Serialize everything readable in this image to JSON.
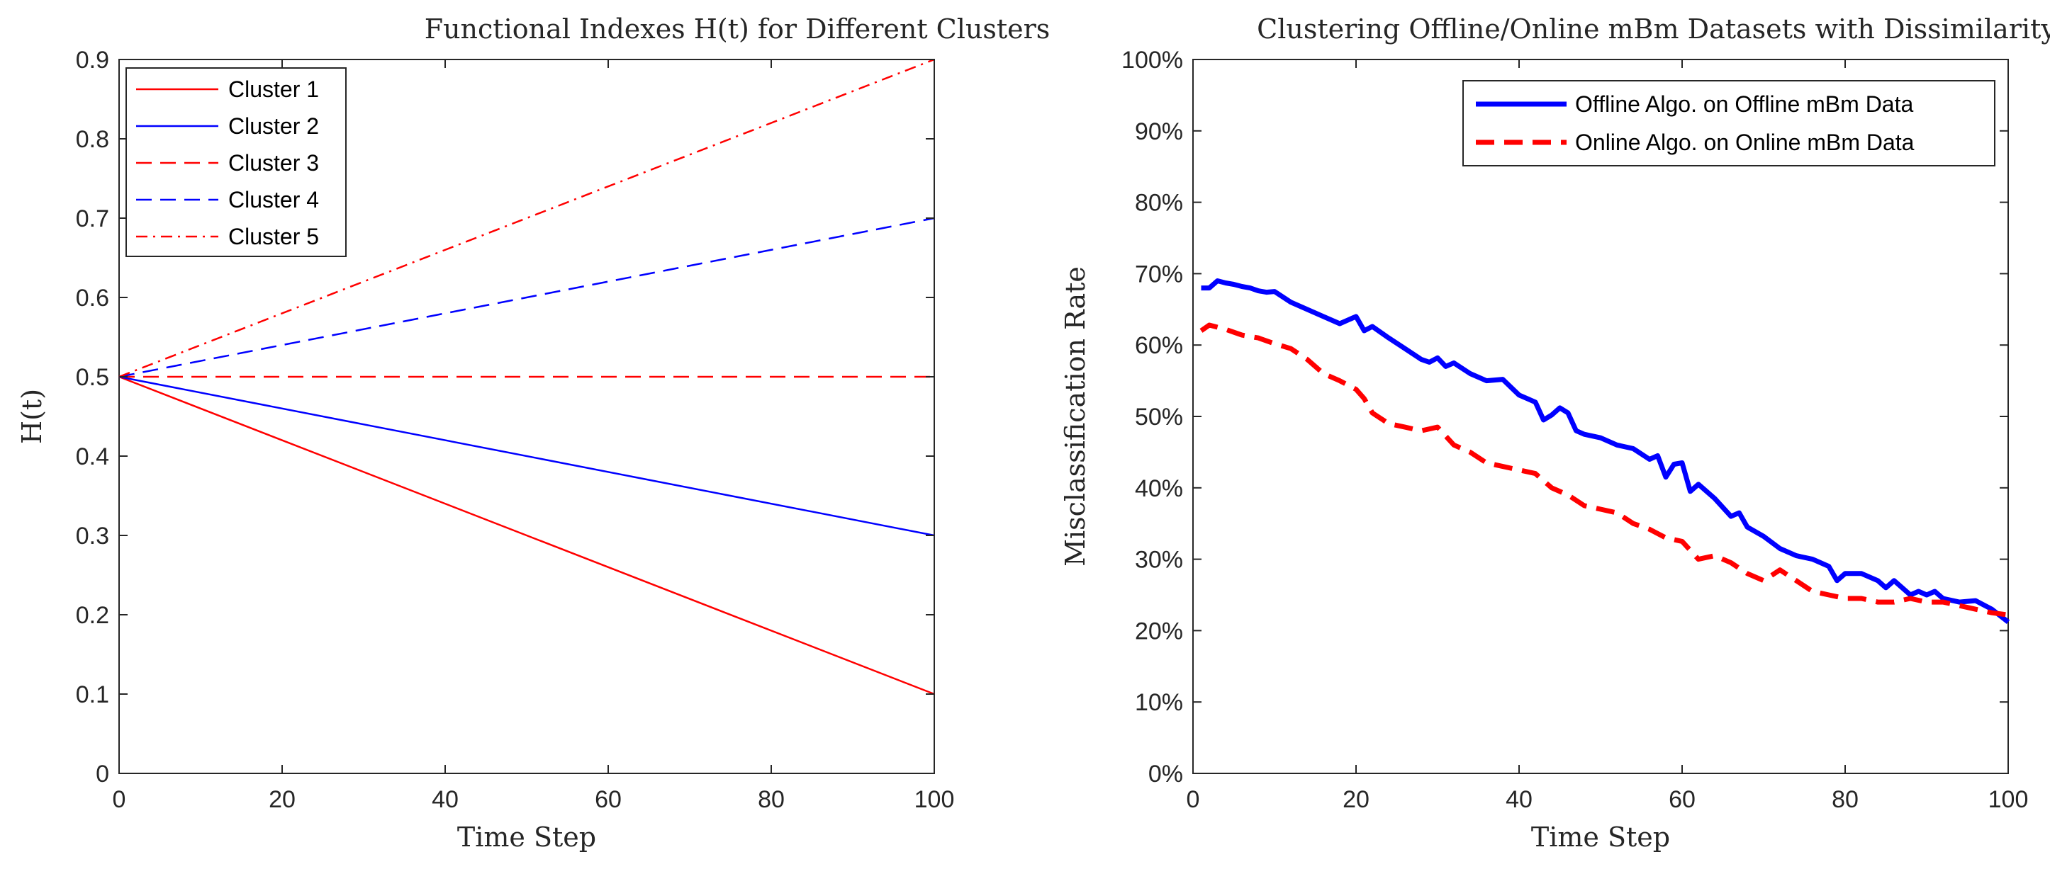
{
  "chart_data": [
    {
      "type": "line",
      "title": "Functional Indexes H(t) for Different Clusters",
      "xlabel": "Time Step",
      "ylabel": "H(t)",
      "xlim": [
        0,
        100
      ],
      "ylim": [
        0,
        0.9
      ],
      "xticks": [
        0,
        20,
        40,
        60,
        80,
        100
      ],
      "xtick_labels": [
        "0",
        "20",
        "40",
        "60",
        "80",
        "100"
      ],
      "yticks": [
        0,
        0.1,
        0.2,
        0.3,
        0.4,
        0.5,
        0.6,
        0.7,
        0.8,
        0.9
      ],
      "ytick_labels": [
        "0",
        "0.1",
        "0.2",
        "0.3",
        "0.4",
        "0.5",
        "0.6",
        "0.7",
        "0.8",
        "0.9"
      ],
      "grid": false,
      "legend_position": "top-left",
      "series": [
        {
          "name": "Cluster 1",
          "color": "#ff0000",
          "style": "solid",
          "x": [
            0,
            100
          ],
          "y": [
            0.5,
            0.1
          ]
        },
        {
          "name": "Cluster 2",
          "color": "#0000ff",
          "style": "solid",
          "x": [
            0,
            100
          ],
          "y": [
            0.5,
            0.3
          ]
        },
        {
          "name": "Cluster 3",
          "color": "#ff0000",
          "style": "dashed",
          "x": [
            0,
            100
          ],
          "y": [
            0.5,
            0.5
          ]
        },
        {
          "name": "Cluster 4",
          "color": "#0000ff",
          "style": "dashed",
          "x": [
            0,
            100
          ],
          "y": [
            0.5,
            0.7
          ]
        },
        {
          "name": "Cluster 5",
          "color": "#ff0000",
          "style": "dashdot",
          "x": [
            0,
            100
          ],
          "y": [
            0.5,
            0.9
          ]
        }
      ]
    },
    {
      "type": "line",
      "title": "Clustering Offline/Online mBm Datasets with Dissimilarity",
      "xlabel": "Time Step",
      "ylabel": "Misclassification Rate",
      "xlim": [
        0,
        100
      ],
      "ylim": [
        0,
        100
      ],
      "xticks": [
        0,
        20,
        40,
        60,
        80,
        100
      ],
      "xtick_labels": [
        "0",
        "20",
        "40",
        "60",
        "80",
        "100"
      ],
      "yticks": [
        0,
        10,
        20,
        30,
        40,
        50,
        60,
        70,
        80,
        90,
        100
      ],
      "ytick_labels": [
        "0%",
        "10%",
        "20%",
        "30%",
        "40%",
        "50%",
        "60%",
        "70%",
        "80%",
        "90%",
        "100%"
      ],
      "grid": false,
      "legend_position": "top-right",
      "series": [
        {
          "name": "Offline Algo. on Offline mBm Data",
          "color": "#0000ff",
          "style": "solid",
          "x": [
            1,
            2,
            3,
            4,
            5,
            6,
            7,
            8,
            9,
            10,
            12,
            14,
            16,
            18,
            19,
            20,
            21,
            22,
            24,
            26,
            28,
            29,
            30,
            31,
            32,
            34,
            36,
            38,
            40,
            42,
            43,
            44,
            45,
            46,
            47,
            48,
            50,
            52,
            54,
            56,
            57,
            58,
            59,
            60,
            61,
            62,
            64,
            66,
            67,
            68,
            70,
            72,
            74,
            76,
            78,
            79,
            80,
            82,
            84,
            85,
            86,
            88,
            89,
            90,
            91,
            92,
            94,
            96,
            98,
            100
          ],
          "y": [
            68,
            68,
            69,
            68.7,
            68.5,
            68.2,
            68,
            67.6,
            67.4,
            67.5,
            66,
            65,
            64,
            63,
            63.5,
            64,
            62,
            62.6,
            61,
            59.5,
            58,
            57.6,
            58.2,
            57,
            57.5,
            56,
            55,
            55.2,
            53,
            52,
            49.5,
            50.2,
            51.2,
            50.5,
            48,
            47.5,
            47,
            46,
            45.5,
            44,
            44.5,
            41.5,
            43.3,
            43.5,
            39.5,
            40.5,
            38.5,
            36,
            36.5,
            34.5,
            33.2,
            31.5,
            30.5,
            30,
            29,
            27,
            28,
            28,
            27,
            26,
            27,
            25,
            25.5,
            25,
            25.5,
            24.5,
            24,
            24.2,
            23,
            21.2
          ]
        },
        {
          "name": "Online Algo. on Online mBm Data",
          "color": "#ff0000",
          "style": "dashed",
          "x": [
            1,
            2,
            3,
            4,
            5,
            6,
            8,
            10,
            12,
            14,
            16,
            18,
            20,
            21,
            22,
            24,
            26,
            28,
            30,
            32,
            34,
            36,
            38,
            40,
            42,
            44,
            46,
            48,
            50,
            52,
            54,
            56,
            58,
            60,
            62,
            64,
            66,
            68,
            70,
            72,
            74,
            76,
            78,
            80,
            82,
            84,
            86,
            88,
            90,
            92,
            94,
            96,
            98,
            100
          ],
          "y": [
            62,
            62.8,
            62.5,
            62.2,
            61.8,
            61.4,
            61,
            60.2,
            59.5,
            58,
            56,
            55,
            53.8,
            52.5,
            50.5,
            49,
            48.5,
            48,
            48.5,
            46,
            45,
            43.5,
            43,
            42.5,
            42,
            40,
            39,
            37.5,
            37,
            36.5,
            35,
            34.2,
            33,
            32.5,
            30,
            30.5,
            29.5,
            28,
            27,
            28.5,
            27,
            25.5,
            25,
            24.5,
            24.5,
            24,
            24,
            24.5,
            24,
            24,
            23.5,
            23,
            22.5,
            22.2
          ]
        }
      ]
    }
  ]
}
